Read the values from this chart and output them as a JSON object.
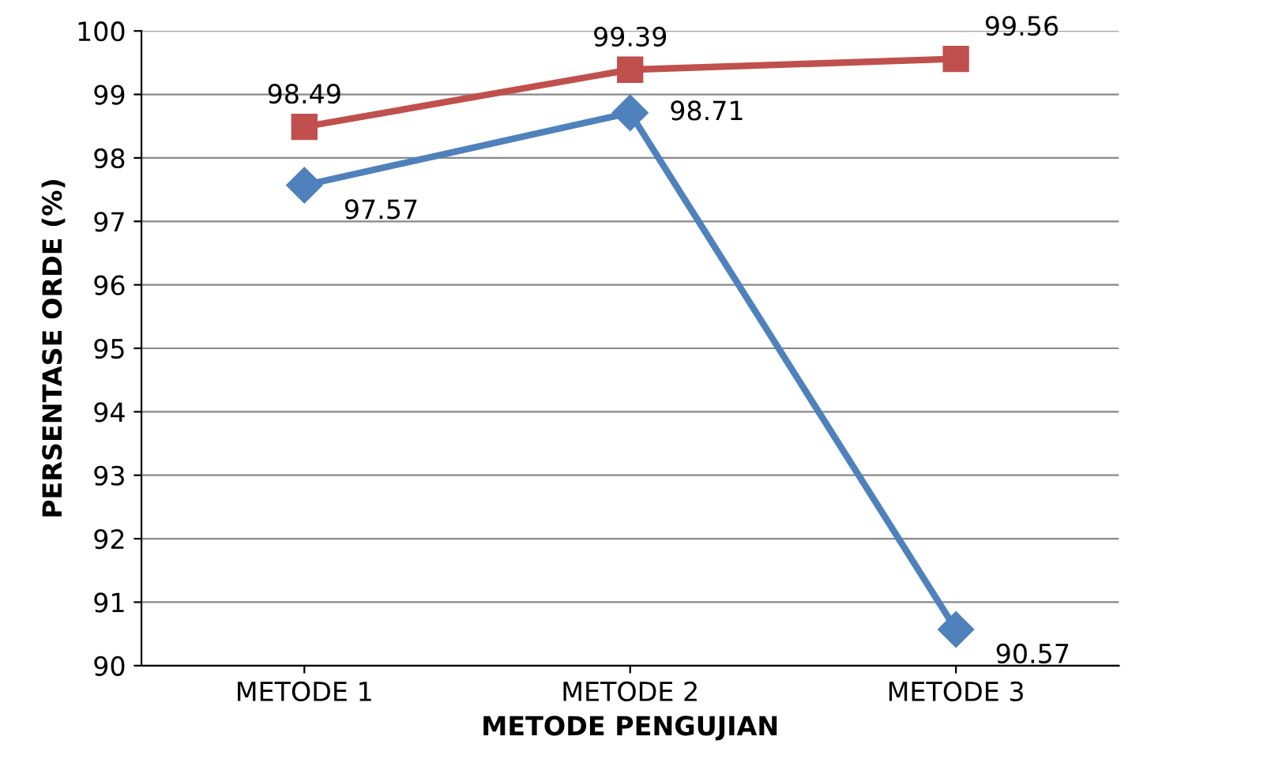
{
  "chart_data": {
    "type": "line",
    "xlabel": "METODE PENGUJIAN",
    "ylabel": "PERSENTASE ORDE (%)",
    "categories": [
      "METODE 1",
      "METODE 2",
      "METODE 3"
    ],
    "series": [
      {
        "color": "#4f81bd",
        "marker": "diamond",
        "values": [
          97.57,
          98.71,
          90.57
        ]
      },
      {
        "color": "#c0504d",
        "marker": "square",
        "values": [
          98.49,
          99.39,
          99.56
        ]
      }
    ],
    "ylim": [
      90,
      100
    ],
    "yticks": [
      90,
      91,
      92,
      93,
      94,
      95,
      96,
      97,
      98,
      99,
      100
    ],
    "grid": "y",
    "data_labels": true
  }
}
